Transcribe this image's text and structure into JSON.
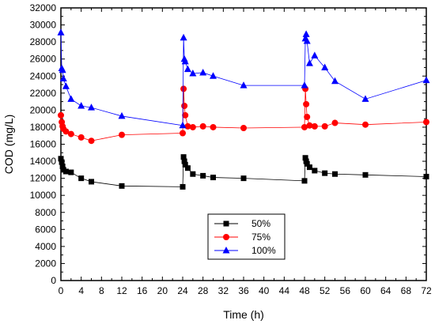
{
  "chart_data": {
    "type": "line",
    "title": "",
    "xlabel": "Time (h)",
    "ylabel": "COD (mg/L)",
    "xlim": [
      0,
      72
    ],
    "ylim": [
      0,
      32000
    ],
    "x_ticks": [
      0,
      4,
      8,
      12,
      16,
      20,
      24,
      28,
      32,
      36,
      40,
      44,
      48,
      52,
      56,
      60,
      64,
      68,
      72
    ],
    "x_tick_labels": [
      "0",
      "4",
      "8",
      "12",
      "16",
      "20",
      "24",
      "28",
      "32",
      "36",
      "40",
      "44",
      "48",
      "52",
      "56",
      "60",
      "64",
      "68",
      "72"
    ],
    "y_ticks": [
      0,
      2000,
      4000,
      6000,
      8000,
      10000,
      12000,
      14000,
      16000,
      18000,
      20000,
      22000,
      24000,
      26000,
      28000,
      30000,
      32000
    ],
    "y_tick_labels": [
      "0",
      "2000",
      "4000",
      "6000",
      "8000",
      "10000",
      "12000",
      "14000",
      "16000",
      "18000",
      "20000",
      "22000",
      "24000",
      "26000",
      "28000",
      "30000",
      "32000"
    ],
    "minor_ticks": true,
    "grid": false,
    "legend_position": "lower-center",
    "series": [
      {
        "name": "50%",
        "color": "#000000",
        "marker": "square",
        "x": [
          0,
          0.17,
          0.33,
          0.5,
          1,
          2,
          4,
          6,
          12,
          24,
          24.17,
          24.33,
          24.5,
          25,
          26,
          28,
          30,
          36,
          48,
          48.17,
          48.33,
          48.5,
          49,
          50,
          52,
          54,
          60,
          72
        ],
        "y": [
          14300,
          13900,
          13400,
          13000,
          12800,
          12700,
          12000,
          11600,
          11100,
          11000,
          14500,
          14000,
          13600,
          13200,
          12500,
          12300,
          12100,
          12000,
          11700,
          14400,
          14000,
          13700,
          13300,
          12900,
          12600,
          12500,
          12400,
          12200
        ]
      },
      {
        "name": "75%",
        "color": "#ff0000",
        "marker": "circle",
        "x": [
          0,
          0.17,
          0.33,
          0.5,
          1,
          2,
          4,
          6,
          12,
          24,
          24.17,
          24.33,
          24.5,
          25,
          26,
          28,
          30,
          36,
          48,
          48.17,
          48.33,
          48.5,
          49,
          50,
          52,
          54,
          60,
          72
        ],
        "y": [
          19400,
          18600,
          18100,
          17800,
          17500,
          17200,
          16800,
          16400,
          17100,
          17300,
          22500,
          20500,
          19400,
          18100,
          18000,
          18100,
          18000,
          17900,
          18000,
          22500,
          20700,
          19200,
          18200,
          18100,
          18100,
          18500,
          18300,
          18600
        ]
      },
      {
        "name": "100%",
        "color": "#0000ff",
        "marker": "triangle",
        "x": [
          0,
          0.17,
          0.33,
          0.5,
          1,
          2,
          4,
          6,
          12,
          24,
          24.17,
          24.33,
          24.5,
          25,
          26,
          28,
          30,
          36,
          48,
          48.17,
          48.33,
          48.5,
          49,
          50,
          52,
          54,
          60,
          72
        ],
        "y": [
          29100,
          24900,
          24700,
          23700,
          22800,
          21300,
          20500,
          20300,
          19300,
          18200,
          28500,
          26000,
          25700,
          24800,
          24300,
          24400,
          24000,
          22900,
          22900,
          28400,
          28900,
          28100,
          25500,
          26400,
          25000,
          23400,
          21300,
          23500
        ]
      }
    ]
  }
}
